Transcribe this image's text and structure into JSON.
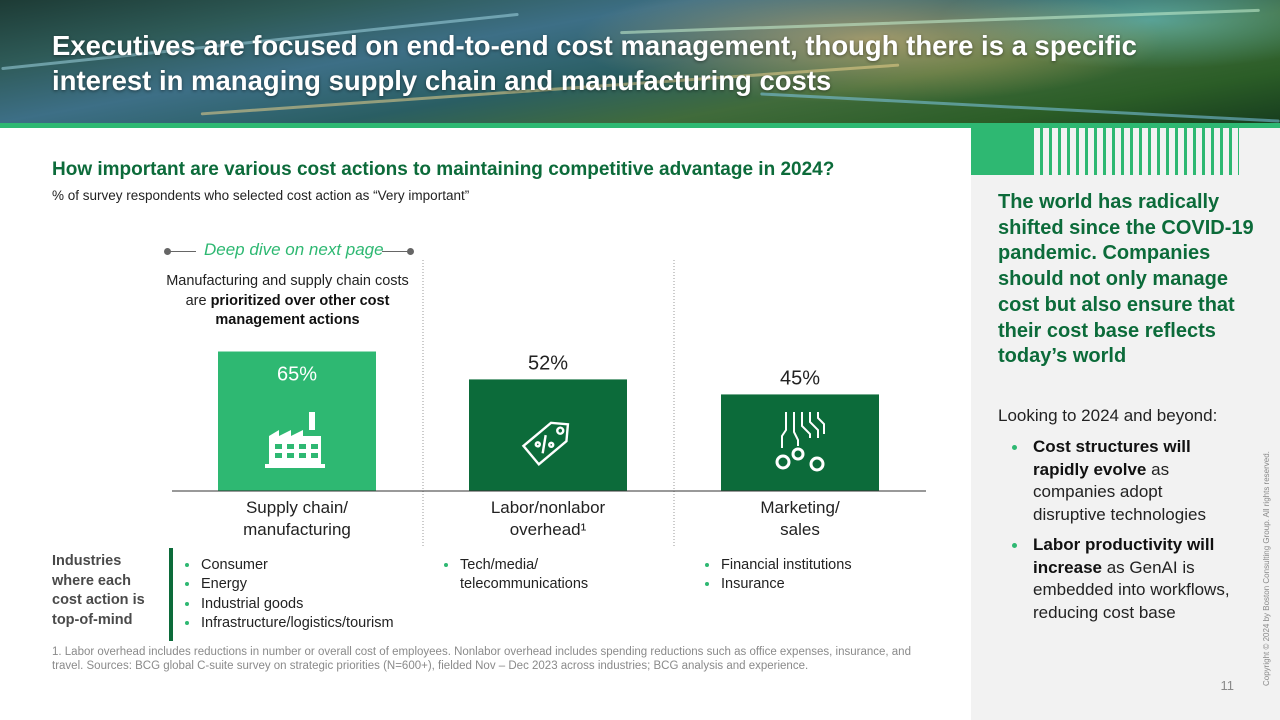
{
  "header": {
    "title": "Executives are focused on end-to-end cost management, though there is a specific interest in managing supply chain and manufacturing costs"
  },
  "chart_header": {
    "question": "How important are various cost actions to maintaining competitive advantage in 2024?",
    "subtitle": "% of survey respondents who selected cost action as “Very important”"
  },
  "callout": {
    "deep_dive": "Deep dive on next page",
    "annotation_pre": "Manufacturing and supply chain costs are ",
    "annotation_bold": "prioritized over other cost management actions"
  },
  "colors": {
    "accent_green": "#2eb872",
    "dark_green": "#0c6b3a",
    "text_green": "#0c6b3a"
  },
  "chart_data": {
    "type": "bar",
    "categories": [
      "Supply chain/\nmanufacturing",
      "Labor/nonlabor\noverhead¹",
      "Marketing/\nsales"
    ],
    "values": [
      65,
      52,
      45
    ],
    "data_labels": [
      "65%",
      "52%",
      "45%"
    ],
    "bar_colors": [
      "#2eb872",
      "#0c6b3a",
      "#0c6b3a"
    ],
    "icons": [
      "factory-icon",
      "price-tag-icon",
      "circuit-coins-icon"
    ],
    "ylim": [
      0,
      100
    ],
    "unit": "%",
    "grid": false,
    "legend": "none"
  },
  "industries": {
    "label": "Industries where each cost action is top-of-mind",
    "columns": [
      [
        "Consumer",
        "Energy",
        "Industrial goods",
        "Infrastructure/logistics/tourism"
      ],
      [
        "Tech/media/\ntelecommunications"
      ],
      [
        "Financial institutions",
        "Insurance"
      ]
    ]
  },
  "footnote": "1. Labor overhead includes reductions in number or overall cost of employees. Nonlabor overhead includes spending reductions such as office expenses, insurance, and travel. Sources: BCG global C-suite survey on strategic priorities (N=600+), fielded Nov – Dec 2023 across industries; BCG analysis and experience.",
  "sidebar": {
    "headline": "The world has radically shifted since the COVID-19 pandemic. Companies should not only manage cost but also ensure that their cost base reflects today’s world",
    "intro": "Looking to 2024 and beyond:",
    "bullets": [
      {
        "bold": "Cost structures will rapidly evolve",
        "text": " as companies adopt disruptive technologies"
      },
      {
        "bold": "Labor productivity will increase",
        "text": " as GenAI is embedded into workflows, reducing cost base"
      }
    ]
  },
  "page_number": "11",
  "copyright": "Copyright © 2024 by Boston Consulting Group. All rights reserved."
}
